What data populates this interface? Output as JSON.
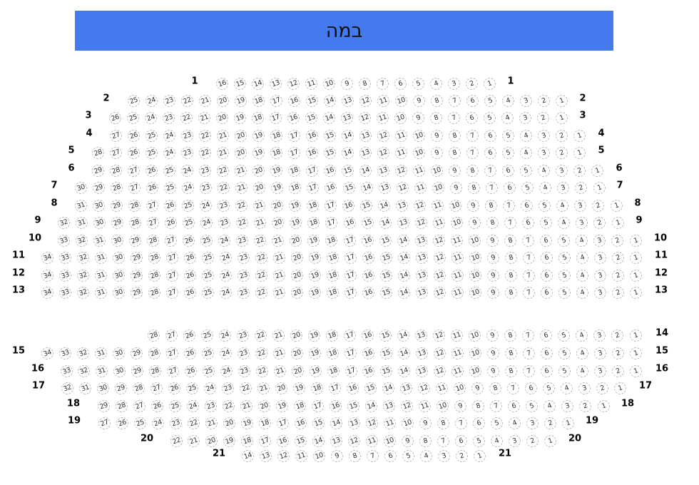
{
  "stage": {
    "label": "במה",
    "color": "#4579ee"
  },
  "seat_style": {
    "border": "#bbbbbb",
    "text": "#333333"
  },
  "rows": [
    {
      "label": "1",
      "seats": 16
    },
    {
      "label": "2",
      "seats": 25
    },
    {
      "label": "3",
      "seats": 26
    },
    {
      "label": "4",
      "seats": 27
    },
    {
      "label": "5",
      "seats": 28
    },
    {
      "label": "6",
      "seats": 29
    },
    {
      "label": "7",
      "seats": 30
    },
    {
      "label": "8",
      "seats": 31
    },
    {
      "label": "9",
      "seats": 32
    },
    {
      "label": "10",
      "seats": 33
    },
    {
      "label": "11",
      "seats": 34
    },
    {
      "label": "12",
      "seats": 34
    },
    {
      "label": "13",
      "seats": 34
    },
    {
      "label": "14",
      "seats": 28,
      "left_label": false
    },
    {
      "label": "15",
      "seats": 34
    },
    {
      "label": "16",
      "seats": 33
    },
    {
      "label": "17",
      "seats": 32
    },
    {
      "label": "18",
      "seats": 29
    },
    {
      "label": "19",
      "seats": 27
    },
    {
      "label": "20",
      "seats": 22
    },
    {
      "label": "21",
      "seats": 14
    }
  ]
}
